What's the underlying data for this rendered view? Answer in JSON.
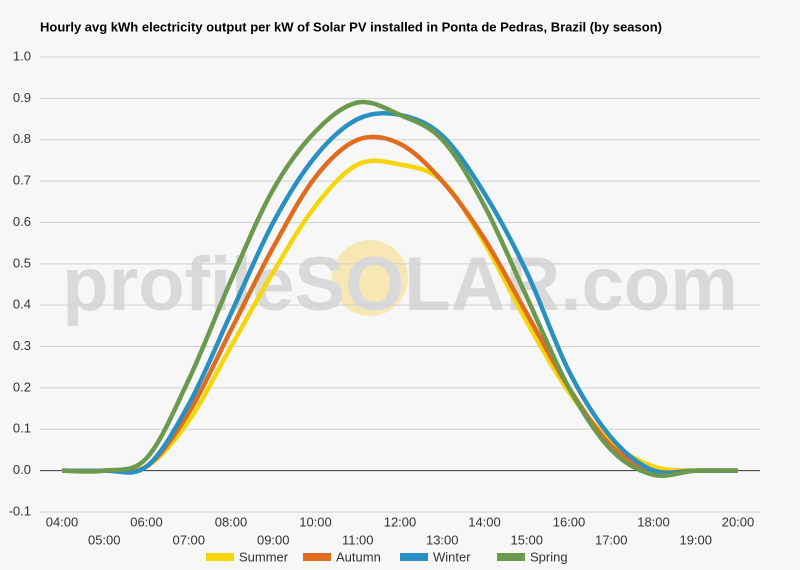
{
  "chart_data": {
    "type": "line",
    "title": "Hourly avg kWh electricity output per kW of Solar PV installed in Ponta de Pedras, Brazil (by season)",
    "watermark": "profileSOLAR.com",
    "categories": [
      "04:00",
      "05:00",
      "06:00",
      "07:00",
      "08:00",
      "09:00",
      "10:00",
      "11:00",
      "12:00",
      "13:00",
      "14:00",
      "15:00",
      "16:00",
      "17:00",
      "18:00",
      "19:00",
      "20:00"
    ],
    "series": [
      {
        "name": "Summer",
        "color": "#f5d60a",
        "values": [
          0,
          0,
          0.01,
          0.12,
          0.3,
          0.48,
          0.64,
          0.74,
          0.74,
          0.7,
          0.55,
          0.36,
          0.19,
          0.07,
          0.01,
          0,
          0
        ]
      },
      {
        "name": "Autumn",
        "color": "#e06c1f",
        "values": [
          0,
          0,
          0.01,
          0.14,
          0.34,
          0.54,
          0.71,
          0.8,
          0.79,
          0.7,
          0.56,
          0.38,
          0.2,
          0.06,
          0,
          0,
          0
        ]
      },
      {
        "name": "Winter",
        "color": "#2a8fc1",
        "values": [
          0,
          0,
          0.01,
          0.16,
          0.38,
          0.6,
          0.76,
          0.85,
          0.86,
          0.81,
          0.67,
          0.48,
          0.24,
          0.08,
          0,
          0,
          0
        ]
      },
      {
        "name": "Spring",
        "color": "#6b9a4f",
        "values": [
          0,
          0,
          0.03,
          0.22,
          0.46,
          0.68,
          0.82,
          0.89,
          0.86,
          0.8,
          0.64,
          0.42,
          0.2,
          0.05,
          -0.01,
          0,
          0
        ]
      }
    ],
    "ylim": [
      -0.1,
      1.0
    ],
    "yticks": [
      {
        "value": -0.1,
        "label": "-0.1"
      },
      {
        "value": 0,
        "label": "0.0"
      },
      0.1,
      0.2,
      0.3,
      0.4,
      0.5,
      0.6,
      0.7,
      0.8,
      0.9,
      {
        "value": 1.0,
        "label": "1.0"
      }
    ],
    "grid": true,
    "legend": "bottom"
  }
}
